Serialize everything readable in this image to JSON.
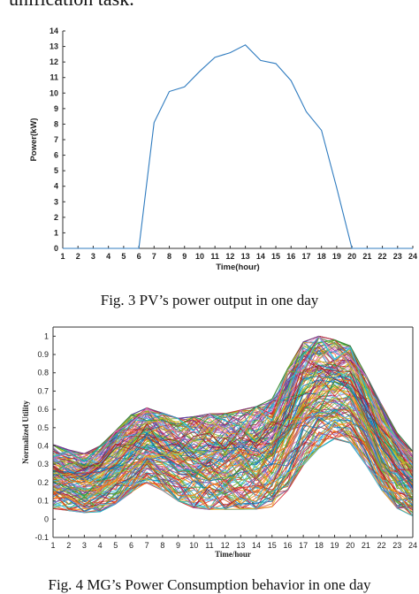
{
  "page": {
    "top_text": "unification task.",
    "caption1": "Fig. 3 PV’s power output in one day",
    "caption2": "Fig. 4 MG’s Power Consumption behavior in one day"
  },
  "chart_data": [
    {
      "type": "line",
      "title": "",
      "xlabel": "Time(hour)",
      "ylabel": "Power(kW)",
      "x": [
        1,
        2,
        3,
        4,
        5,
        6,
        7,
        8,
        9,
        10,
        11,
        12,
        13,
        14,
        15,
        16,
        17,
        18,
        19,
        20,
        21,
        22,
        23,
        24
      ],
      "series": [
        {
          "values": [
            0,
            0,
            0,
            0,
            0,
            0,
            8.1,
            10.1,
            10.4,
            11.4,
            12.3,
            12.6,
            13.1,
            12.1,
            11.9,
            10.8,
            8.8,
            7.6,
            3.9,
            0,
            0,
            0,
            0,
            0
          ]
        }
      ],
      "xlim": [
        1,
        24
      ],
      "ylim": [
        0,
        14
      ],
      "yticks": [
        0,
        1,
        2,
        3,
        4,
        5,
        6,
        7,
        8,
        9,
        10,
        11,
        12,
        13,
        14
      ],
      "grid": false,
      "colors": [
        "#2f7bbf"
      ]
    },
    {
      "type": "line",
      "title": "",
      "xlabel": "Time/hour",
      "ylabel": "Normalized Utility",
      "x": [
        1,
        2,
        3,
        4,
        5,
        6,
        7,
        8,
        9,
        10,
        11,
        12,
        13,
        14,
        15,
        16,
        17,
        18,
        19,
        20,
        21,
        22,
        23,
        24
      ],
      "xlim": [
        1,
        24
      ],
      "ylim": [
        -0.1,
        1.05
      ],
      "yticks": [
        -0.1,
        0,
        0.1,
        0.2,
        0.3,
        0.4,
        0.5,
        0.6,
        0.7,
        0.8,
        0.9,
        1
      ],
      "ytick_labels": [
        "-0.1",
        "0",
        "0.1",
        "0.2",
        "0.3",
        "0.4",
        "0.5",
        "0.6",
        "0.7",
        "0.8",
        "0.9",
        "1"
      ],
      "grid": false,
      "envelope_upper": [
        0.43,
        0.4,
        0.38,
        0.42,
        0.5,
        0.58,
        0.62,
        0.6,
        0.58,
        0.6,
        0.62,
        0.62,
        0.64,
        0.66,
        0.7,
        0.85,
        0.98,
        1.0,
        0.98,
        0.95,
        0.8,
        0.65,
        0.5,
        0.4
      ],
      "envelope_lower": [
        0.04,
        0.03,
        0.02,
        0.02,
        0.06,
        0.12,
        0.18,
        0.14,
        0.08,
        0.04,
        0.03,
        0.03,
        0.03,
        0.03,
        0.04,
        0.12,
        0.26,
        0.36,
        0.42,
        0.4,
        0.28,
        0.14,
        0.04,
        0.0
      ],
      "profile": [
        0.22,
        0.2,
        0.18,
        0.22,
        0.3,
        0.4,
        0.42,
        0.36,
        0.3,
        0.26,
        0.25,
        0.26,
        0.27,
        0.28,
        0.32,
        0.52,
        0.7,
        0.78,
        0.78,
        0.72,
        0.56,
        0.38,
        0.24,
        0.16
      ],
      "series_count": 150,
      "colors": [
        "#1f77b4",
        "#d95319",
        "#edb120",
        "#7e2f8e",
        "#77ac30",
        "#4dbeee",
        "#a2142f",
        "#0072bd",
        "#ff7f0e",
        "#2ca02c",
        "#d62728",
        "#9467bd",
        "#17becf",
        "#e377c2",
        "#bcbd22"
      ]
    }
  ]
}
